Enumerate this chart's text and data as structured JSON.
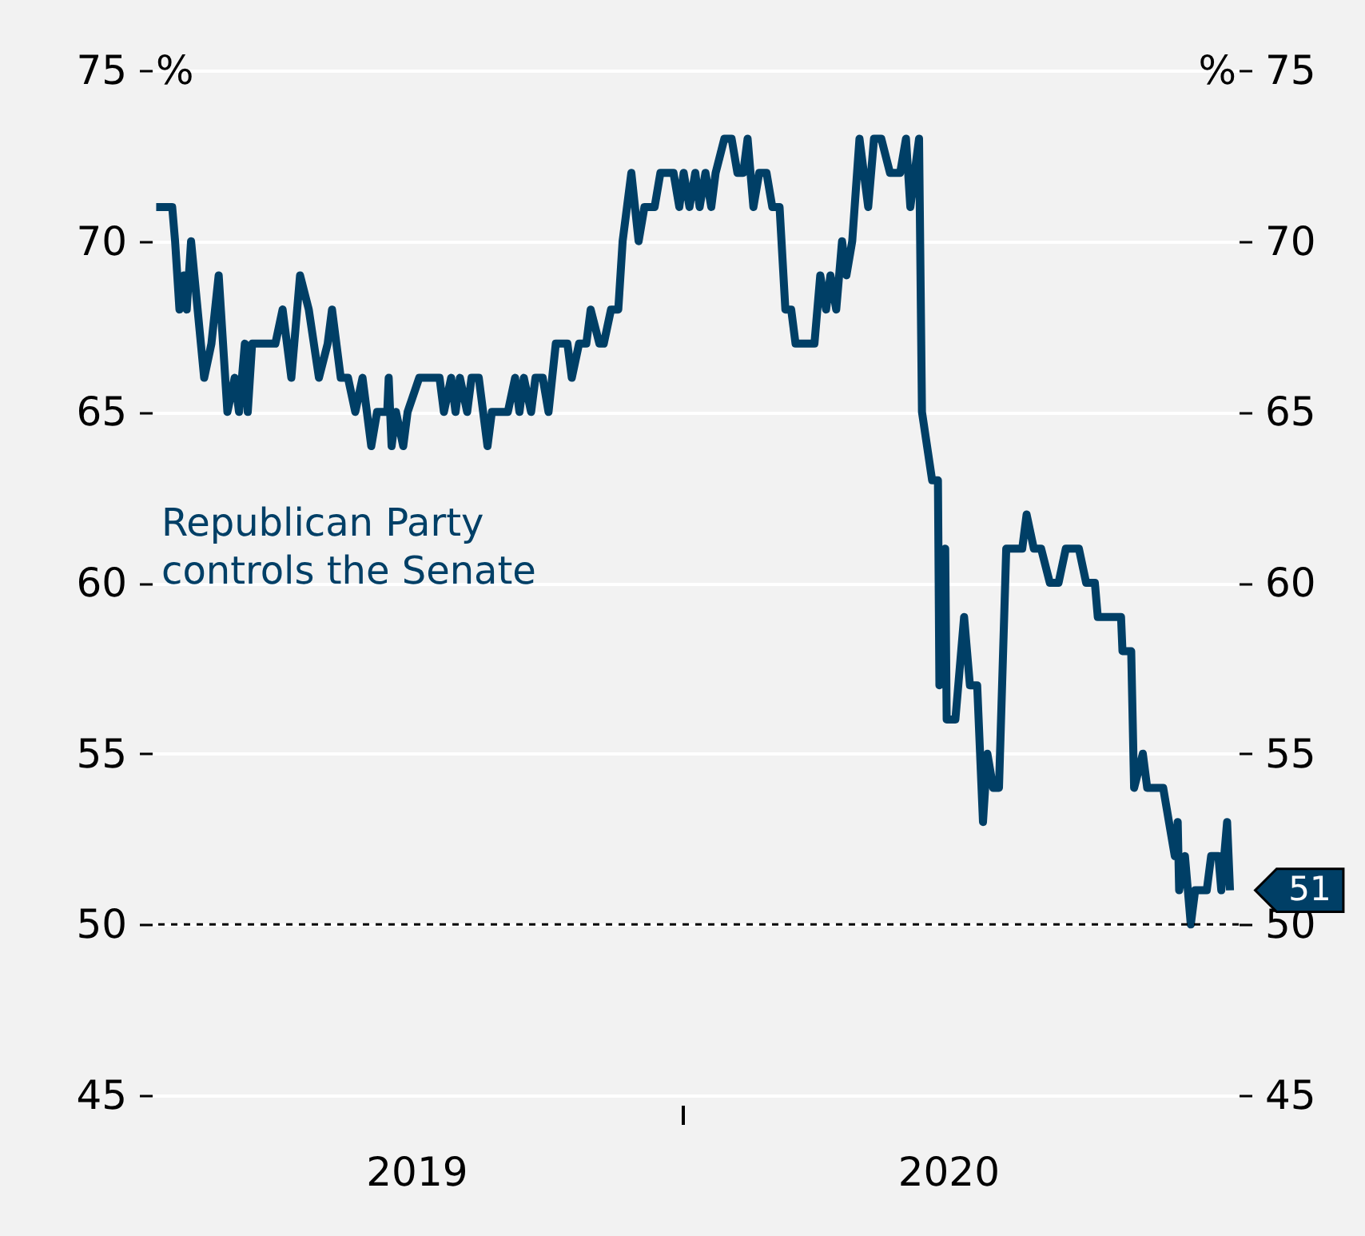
{
  "chart_data": {
    "type": "line",
    "x": [
      "2019-01-04",
      "2019-01-15",
      "2019-01-17",
      "2019-01-20",
      "2019-01-23",
      "2019-01-25",
      "2019-01-28",
      "2019-02-06",
      "2019-02-11",
      "2019-02-16",
      "2019-02-22",
      "2019-02-27",
      "2019-03-02",
      "2019-03-06",
      "2019-03-08",
      "2019-03-11",
      "2019-03-27",
      "2019-04-01",
      "2019-04-07",
      "2019-04-13",
      "2019-04-19",
      "2019-04-26",
      "2019-05-02",
      "2019-05-05",
      "2019-05-11",
      "2019-05-16",
      "2019-05-21",
      "2019-05-26",
      "2019-06-01",
      "2019-06-05",
      "2019-06-12",
      "2019-06-13",
      "2019-06-15",
      "2019-06-18",
      "2019-06-23",
      "2019-06-26",
      "2019-07-04",
      "2019-07-18",
      "2019-07-21",
      "2019-07-26",
      "2019-07-29",
      "2019-08-01",
      "2019-08-06",
      "2019-08-09",
      "2019-08-14",
      "2019-08-20",
      "2019-08-23",
      "2019-09-03",
      "2019-09-08",
      "2019-09-11",
      "2019-09-14",
      "2019-09-19",
      "2019-09-22",
      "2019-09-27",
      "2019-10-01",
      "2019-10-06",
      "2019-10-14",
      "2019-10-17",
      "2019-10-22",
      "2019-10-27",
      "2019-10-30",
      "2019-11-05",
      "2019-11-08",
      "2019-11-13",
      "2019-11-18",
      "2019-11-21",
      "2019-11-27",
      "2019-12-02",
      "2019-12-06",
      "2019-12-13",
      "2019-12-17",
      "2019-12-26",
      "2019-12-30",
      "2020-01-02",
      "2020-01-06",
      "2020-01-10",
      "2020-01-13",
      "2020-01-17",
      "2020-01-21",
      "2020-01-24",
      "2020-01-30",
      "2020-02-04",
      "2020-02-08",
      "2020-02-12",
      "2020-02-15",
      "2020-02-19",
      "2020-02-23",
      "2020-02-28",
      "2020-03-03",
      "2020-03-08",
      "2020-03-12",
      "2020-03-16",
      "2020-03-19",
      "2020-04-01",
      "2020-04-05",
      "2020-04-09",
      "2020-04-12",
      "2020-04-16",
      "2020-04-20",
      "2020-04-23",
      "2020-04-27",
      "2020-05-02",
      "2020-05-08",
      "2020-05-12",
      "2020-05-17",
      "2020-05-23",
      "2020-05-30",
      "2020-06-03",
      "2020-06-06",
      "2020-06-12",
      "2020-06-14",
      "2020-06-21",
      "2020-06-25",
      "2020-06-26",
      "2020-06-30",
      "2020-07-01",
      "2020-07-07",
      "2020-07-13",
      "2020-07-17",
      "2020-07-22",
      "2020-07-26",
      "2020-07-29",
      "2020-08-02",
      "2020-08-06",
      "2020-08-11",
      "2020-08-22",
      "2020-08-25",
      "2020-08-30",
      "2020-09-04",
      "2020-09-10",
      "2020-09-16",
      "2020-09-21",
      "2020-09-30",
      "2020-10-05",
      "2020-10-11",
      "2020-10-13",
      "2020-10-29",
      "2020-10-30",
      "2020-11-05",
      "2020-11-07",
      "2020-11-13",
      "2020-11-16",
      "2020-11-27",
      "2020-12-01",
      "2020-12-05",
      "2020-12-07",
      "2020-12-08",
      "2020-12-12",
      "2020-12-16",
      "2020-12-19",
      "2020-12-27",
      "2020-12-30",
      "2021-01-04",
      "2021-01-06",
      "2021-01-10",
      "2021-01-12"
    ],
    "series": [
      {
        "name": "Republican Party controls the Senate",
        "color": "#003f66",
        "values": [
          71,
          71,
          70,
          68,
          69,
          68,
          70,
          66,
          67,
          69,
          65,
          66,
          65,
          67,
          65,
          67,
          67,
          68,
          66,
          69,
          68,
          66,
          67,
          68,
          66,
          66,
          65,
          66,
          64,
          65,
          65,
          66,
          64,
          65,
          64,
          65,
          66,
          66,
          65,
          66,
          65,
          66,
          65,
          66,
          66,
          64,
          65,
          65,
          66,
          65,
          66,
          65,
          66,
          66,
          65,
          67,
          67,
          66,
          67,
          67,
          68,
          67,
          67,
          68,
          68,
          70,
          72,
          70,
          71,
          71,
          72,
          72,
          71,
          72,
          71,
          72,
          71,
          72,
          71,
          72,
          73,
          73,
          72,
          72,
          73,
          71,
          72,
          72,
          71,
          71,
          68,
          68,
          67,
          67,
          69,
          68,
          69,
          68,
          70,
          69,
          70,
          73,
          71,
          73,
          73,
          72,
          72,
          73,
          71,
          73,
          65,
          63,
          63,
          57,
          61,
          56,
          56,
          59,
          57,
          57,
          53,
          55,
          54,
          54,
          61,
          61,
          62,
          61,
          61,
          60,
          60,
          61,
          61,
          60,
          60,
          59,
          59,
          58,
          58,
          54,
          55,
          54,
          54,
          53,
          52,
          53,
          51,
          52,
          50,
          51,
          51,
          52,
          52,
          51,
          53,
          51
        ]
      }
    ],
    "xlim": [
      "2019-01-01",
      "2021-01-18"
    ],
    "xticks": [
      {
        "value": "2019-07-02",
        "label": "2019"
      },
      {
        "value": "2020-01-01",
        "label": null
      },
      {
        "value": "2020-07-02",
        "label": "2020"
      }
    ],
    "ylim": [
      45,
      75
    ],
    "yticks": [
      45,
      50,
      55,
      60,
      65,
      70,
      75
    ],
    "ylabel": "%",
    "y2lim": [
      45,
      75
    ],
    "y2ticks": [
      45,
      50,
      55,
      60,
      65,
      70,
      75
    ],
    "y2label": "%",
    "ref_lines": [
      {
        "axis": "y",
        "value": 50,
        "color": "#000000",
        "line_style": "dashed"
      }
    ],
    "annotations": [
      {
        "text": "51",
        "x": "2021-01-12",
        "y": 51
      }
    ],
    "grid": "y",
    "marker": "none",
    "line_style": "solid"
  }
}
